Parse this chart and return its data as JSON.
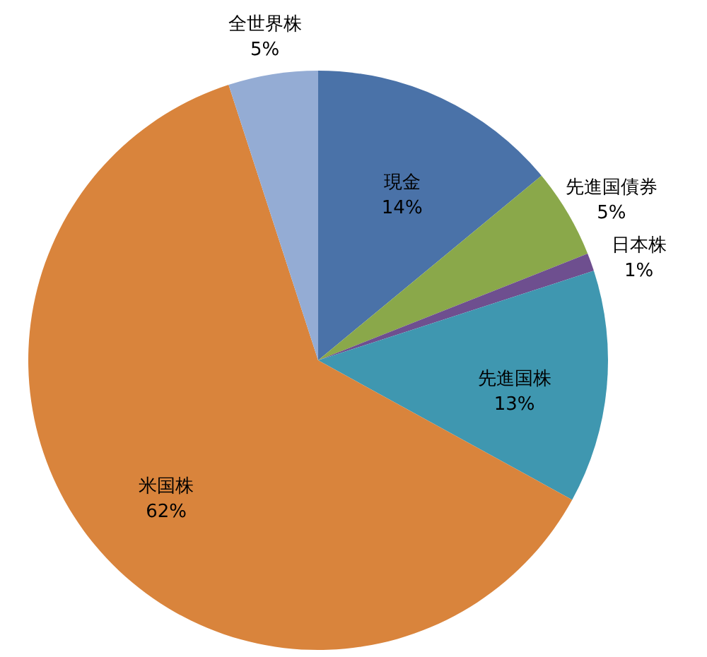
{
  "chart_data": {
    "type": "pie",
    "categories": [
      "現金",
      "先進国債券",
      "日本株",
      "先進国株",
      "米国株",
      "全世界株"
    ],
    "values": [
      14,
      5,
      1,
      13,
      62,
      5
    ],
    "colors": [
      "#4a72a8",
      "#8aa84a",
      "#6e4f8f",
      "#3f97b0",
      "#d9843c",
      "#94acd4"
    ],
    "value_labels": [
      "14%",
      "5%",
      "1%",
      "13%",
      "62%",
      "5%"
    ]
  }
}
